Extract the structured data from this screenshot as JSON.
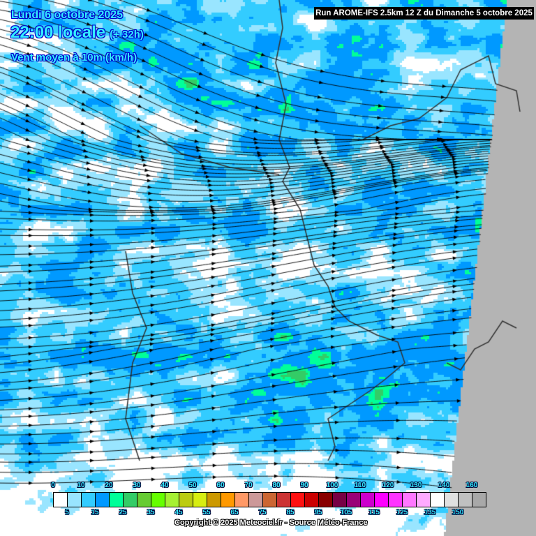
{
  "header": {
    "date": "Lundi 6 octobre 2025",
    "time": "22:00 locale",
    "lead": "(+ 32h)",
    "variable": "Vent moyen à 10m (km/h)",
    "run": "Run AROME-IFS 2.5km 12 Z du Dimanche 5 octobre 2025"
  },
  "legend": {
    "unit": "km/h",
    "colors": [
      "#ffffff",
      "#99e5ff",
      "#33ccff",
      "#0099ff",
      "#00ff99",
      "#33cc66",
      "#66cc33",
      "#66ff00",
      "#a6f033",
      "#bbcc11",
      "#d7ee11",
      "#cc9900",
      "#ff9900",
      "#ff9966",
      "#cc9999",
      "#cc6633",
      "#cc3333",
      "#ff1111",
      "#cc0000",
      "#880000",
      "#770044",
      "#990077",
      "#cc00cc",
      "#ff00ff",
      "#ff33ff",
      "#ff77ff",
      "#ffaaff",
      "#ffffff",
      "#e0e0e0",
      "#c0c0c0",
      "#a8a8a8"
    ],
    "top_labels": [
      "0",
      "10",
      "20",
      "30",
      "40",
      "50",
      "60",
      "70",
      "80",
      "90",
      "100",
      "110",
      "120",
      "130",
      "140",
      "160"
    ],
    "bottom_labels": [
      "5",
      "15",
      "25",
      "35",
      "45",
      "55",
      "65",
      "75",
      "85",
      "95",
      "105",
      "115",
      "125",
      "135",
      "150"
    ]
  },
  "map": {
    "out_of_domain_color": "#b4b4b4",
    "border_color": "#333333",
    "streamline_color": "#000000",
    "wind_direction": "west to east"
  },
  "footer": {
    "copyright": "Copyright © 2025 Meteociel.fr - Source Météo-France"
  }
}
